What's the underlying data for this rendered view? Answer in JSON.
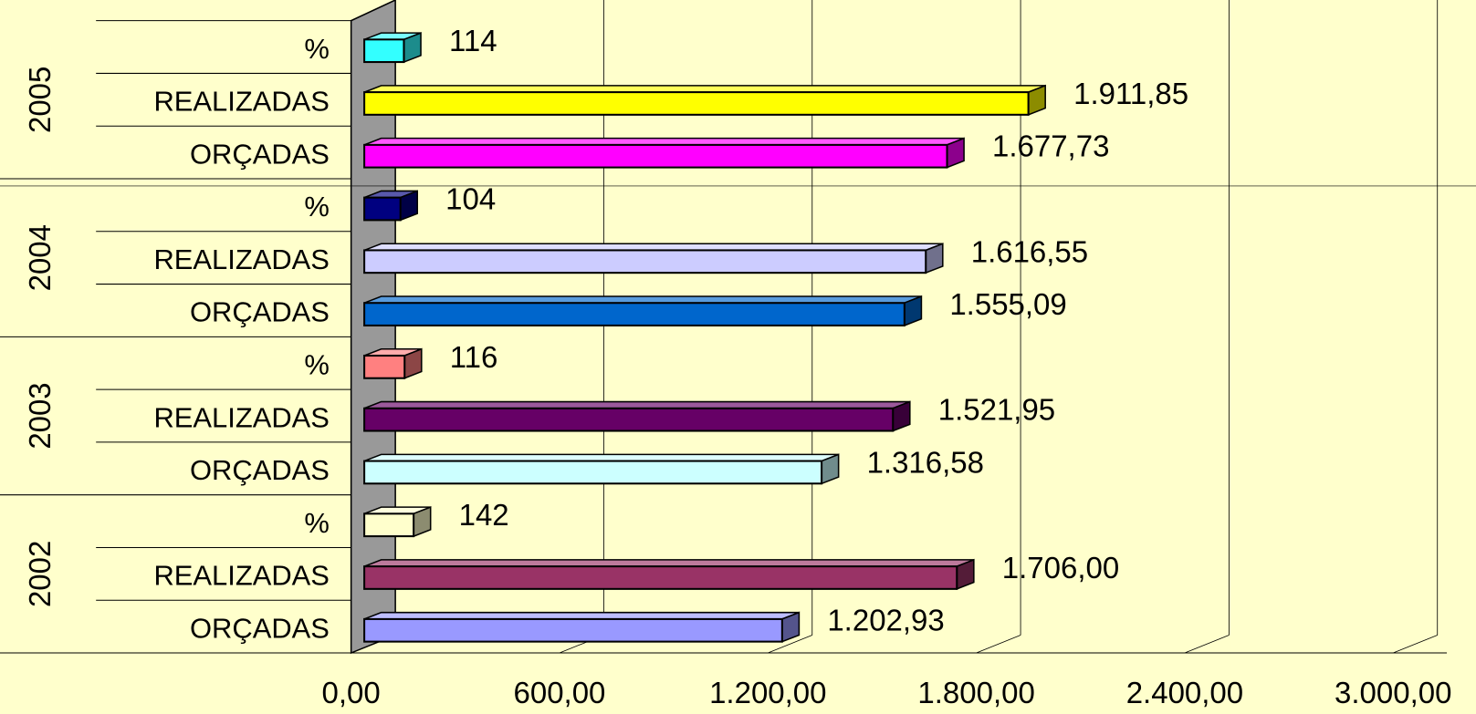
{
  "chart_data": {
    "type": "bar3d_horizontal",
    "groups": [
      "2005",
      "2004",
      "2003",
      "2002"
    ],
    "categories": [
      "%",
      "REALIZADAS",
      "ORÇADAS",
      "%",
      "REALIZADAS",
      "ORÇADAS",
      "%",
      "REALIZADAS",
      "ORÇADAS",
      "%",
      "REALIZADAS",
      "ORÇADAS"
    ],
    "values": [
      114,
      1911.85,
      1677.73,
      104,
      1616.55,
      1555.09,
      116,
      1521.95,
      1316.58,
      142,
      1706.0,
      1202.93
    ],
    "value_labels": [
      "114",
      "1.911,85",
      "1.677,73",
      "104",
      "1.616,55",
      "1.555,09",
      "116",
      "1.521,95",
      "1.316,58",
      "142",
      "1.706,00",
      "1.202,93"
    ],
    "colors": [
      "#33ffff",
      "#ffff00",
      "#ff00ff",
      "#000080",
      "#ccccff",
      "#0066cc",
      "#ff8080",
      "#660066",
      "#ccffff",
      "#ffffcc",
      "#993366",
      "#9999ff"
    ],
    "xlim": [
      0,
      3000
    ],
    "xticks": [
      {
        "value": 0,
        "label": "0,00"
      },
      {
        "value": 600,
        "label": "600,00"
      },
      {
        "value": 1200,
        "label": "1.200,00"
      },
      {
        "value": 1800,
        "label": "1.800,00"
      },
      {
        "value": 2400,
        "label": "2.400,00"
      },
      {
        "value": 3000,
        "label": "3.000,00"
      }
    ],
    "grid": true
  }
}
